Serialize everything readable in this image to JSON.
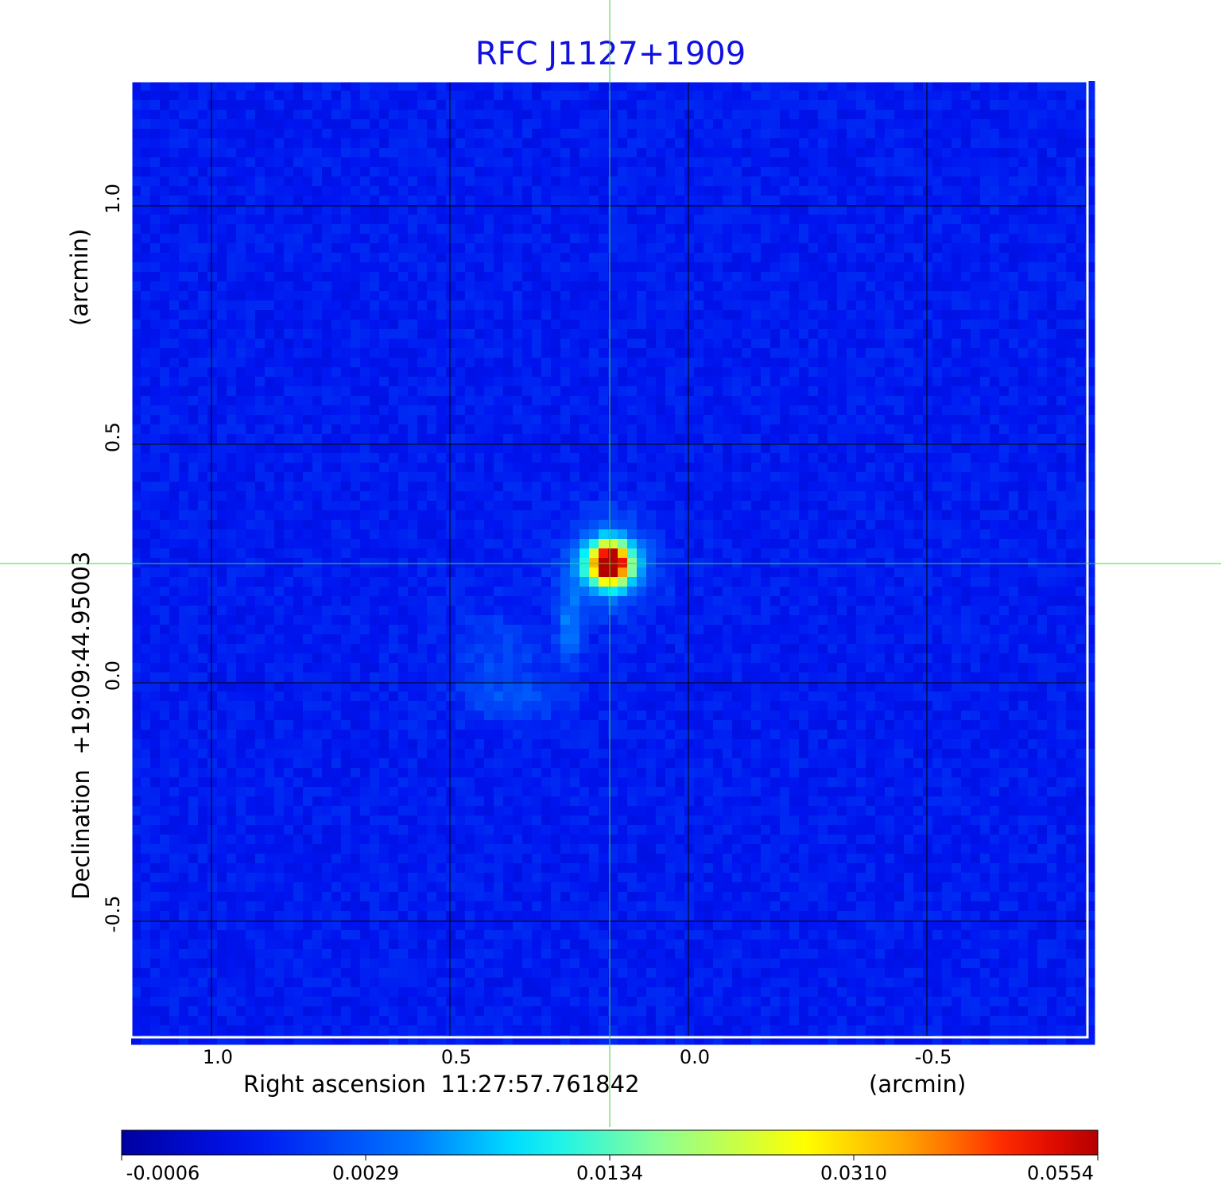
{
  "chart_data": {
    "type": "heatmap",
    "title": "RFC J1127+1909",
    "xlabel": "Right ascension  11:27:57.761842",
    "x_unit_label": "(arcmin)",
    "ylabel": "Declination  +19:09:44.95003",
    "y_unit_label": "(arcmin)",
    "x_ticks": [
      "1.0",
      "0.5",
      "0.0",
      "-0.5"
    ],
    "x_tick_values": [
      1.0,
      0.5,
      0.0,
      -0.5
    ],
    "y_ticks": [
      "1.0",
      "0.5",
      "0.0",
      "-0.5"
    ],
    "y_tick_values": [
      1.0,
      0.5,
      0.0,
      -0.5
    ],
    "xlim": [
      1.17,
      -0.84
    ],
    "ylim": [
      -0.74,
      1.26
    ],
    "x_reversed": true,
    "grid": true,
    "grid_color": "#000000",
    "crosshair": {
      "x": 0.165,
      "y": 0.25,
      "color": "#33dd33"
    },
    "colormap": "jet",
    "colorbar": {
      "placement": "bottom",
      "ticks": [
        "-0.0006",
        "0.0029",
        "0.0134",
        "0.0310",
        "0.0554"
      ],
      "min": -0.0006,
      "max": 0.0554
    },
    "features": [
      {
        "name": "core",
        "x": 0.165,
        "y": 0.25,
        "peak": 0.0554
      },
      {
        "name": "jet knot",
        "x": 0.25,
        "y": 0.11,
        "peak": 0.005
      },
      {
        "name": "diffuse lobe",
        "x": 0.38,
        "y": -0.01,
        "peak": 0.002
      }
    ],
    "title_color": "#1010e0"
  }
}
